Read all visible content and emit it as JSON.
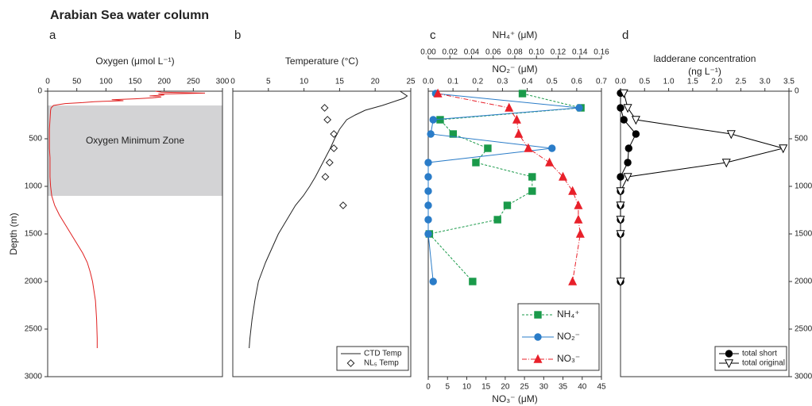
{
  "title": "Arabian Sea water column",
  "chart_data": [
    {
      "panel": "a",
      "type": "line",
      "xaxis_side": "top",
      "xlabel": "Oxygen (μmol L⁻¹)",
      "xlim": [
        0,
        300
      ],
      "xticks": [
        0,
        50,
        100,
        150,
        200,
        250,
        300
      ],
      "ylabel": "Depth (m)",
      "yaxis_side": "left",
      "ylim": [
        0,
        3000
      ],
      "yticks": [
        0,
        500,
        1000,
        1500,
        2000,
        2500,
        3000
      ],
      "annotation": {
        "text": "Oxygen Minimum Zone",
        "depth_range": [
          150,
          1100
        ],
        "color": "#d3d3d5"
      },
      "series": [
        {
          "color": "#e02020",
          "line": "solid",
          "marker": "none",
          "depths": [
            0,
            10,
            20,
            30,
            40,
            50,
            60,
            70,
            80,
            90,
            100,
            110,
            120,
            130,
            140,
            150,
            175,
            200,
            300,
            400,
            500,
            600,
            700,
            800,
            900,
            1000,
            1100,
            1200,
            1300,
            1400,
            1500,
            1600,
            1700,
            1800,
            1900,
            2000,
            2200,
            2400,
            2600,
            2700
          ],
          "values": [
            185,
            195,
            270,
            190,
            200,
            175,
            195,
            180,
            150,
            110,
            130,
            80,
            60,
            30,
            20,
            10,
            6,
            5,
            4,
            3,
            3,
            3,
            4,
            4,
            4,
            5,
            7,
            12,
            20,
            30,
            40,
            50,
            60,
            68,
            73,
            77,
            82,
            84,
            85,
            85
          ]
        }
      ]
    },
    {
      "panel": "b",
      "type": "line",
      "xaxis_side": "top",
      "xlabel": "Temperature (°C)",
      "xlim": [
        0,
        25
      ],
      "xticks": [
        0,
        5,
        10,
        15,
        20,
        25
      ],
      "ylim": [
        0,
        3000
      ],
      "legend": "lower right",
      "series": [
        {
          "name": "CTD Temp",
          "color": "#222222",
          "line": "solid",
          "marker": "none",
          "depths": [
            0,
            50,
            75,
            100,
            150,
            200,
            250,
            300,
            400,
            500,
            600,
            700,
            800,
            900,
            1000,
            1100,
            1200,
            1300,
            1400,
            1500,
            1600,
            1700,
            1800,
            1900,
            2000,
            2200,
            2400,
            2600,
            2700
          ],
          "values": [
            23.5,
            24.5,
            24,
            23,
            21,
            18.6,
            17.2,
            16,
            15,
            14.3,
            13.7,
            13,
            12.3,
            11.6,
            10.8,
            9.9,
            8.8,
            8,
            7.2,
            6.4,
            5.8,
            5.2,
            4.6,
            4.1,
            3.6,
            3.1,
            2.7,
            2.4,
            2.3
          ]
        },
        {
          "name": "NL₅ Temp",
          "color": "#222222",
          "line": "none",
          "marker": "diamond",
          "fill": "#ffffff",
          "depths": [
            175,
            300,
            450,
            600,
            750,
            900,
            1200
          ],
          "values": [
            12.9,
            13.3,
            14.2,
            14.2,
            13.6,
            13.0,
            15.5
          ]
        }
      ]
    },
    {
      "panel": "c",
      "type": "line",
      "xaxis_side": "bottom",
      "xlabel": "NO₃⁻ (μM)",
      "xlim": [
        0,
        45
      ],
      "xticks": [
        0,
        5,
        10,
        15,
        20,
        25,
        30,
        35,
        40,
        45
      ],
      "x2label": "NO₂⁻ (μM)",
      "x2lim": [
        0,
        0.7
      ],
      "x2ticks": [
        {
          "value": 0,
          "label": "0.0"
        },
        0.1,
        0.2,
        0.3,
        0.4,
        0.5,
        0.6,
        0.7
      ],
      "x3label": "NH₄⁺ (μM)",
      "x3lim": [
        0,
        0.16
      ],
      "x3ticks": [
        {
          "value": 0,
          "label": "0.00"
        },
        0.02,
        0.04,
        0.06,
        0.08,
        {
          "value": 0.1,
          "label": "0.10"
        },
        0.12,
        0.14,
        0.16
      ],
      "ylim": [
        0,
        3000
      ],
      "legend": "lower right",
      "series": [
        {
          "name": "NH₄⁺",
          "axis": "x3",
          "color": "#1a9a4a",
          "line": "dashed",
          "marker": "square",
          "depths": [
            25,
            175,
            300,
            450,
            600,
            750,
            900,
            1050,
            1200,
            1350,
            1500,
            2000
          ],
          "values": [
            0.087,
            0.141,
            0.011,
            0.023,
            0.055,
            0.044,
            0.096,
            0.096,
            0.073,
            0.064,
            0.001,
            0.041
          ]
        },
        {
          "name": "NO₂⁻",
          "axis": "x2",
          "color": "#2a7cc8",
          "line": "solid",
          "marker": "circle",
          "depths": [
            25,
            175,
            300,
            450,
            600,
            750,
            900,
            1050,
            1200,
            1350,
            1500,
            2000
          ],
          "values": [
            0.03,
            0.61,
            0.02,
            0.01,
            0.5,
            0,
            0,
            0,
            0,
            0,
            0,
            0.02
          ]
        },
        {
          "name": "NO₃⁻",
          "color": "#e8202a",
          "line": "dashdot",
          "marker": "triangle",
          "depths": [
            25,
            175,
            300,
            450,
            600,
            750,
            900,
            1050,
            1200,
            1350,
            1500,
            2000
          ],
          "values": [
            2.5,
            21,
            23,
            23.5,
            26,
            31.5,
            35,
            37.5,
            39,
            39,
            39.5,
            37.5
          ]
        }
      ]
    },
    {
      "panel": "d",
      "type": "line",
      "xaxis_side": "top",
      "xlabel": [
        "ladderane concentration",
        "(ng L⁻¹)"
      ],
      "xlim": [
        0,
        3.5
      ],
      "xticks": [
        {
          "value": 0,
          "label": "0.0"
        },
        0.5,
        {
          "value": 1,
          "label": "1.0"
        },
        1.5,
        {
          "value": 2,
          "label": "2.0"
        },
        2.5,
        {
          "value": 3,
          "label": "3.0"
        },
        3.5
      ],
      "yaxis_side": "right",
      "ylim": [
        0,
        3000
      ],
      "yticks": [
        0,
        500,
        1000,
        1500,
        2000,
        2500,
        3000
      ],
      "legend": "lower right",
      "series": [
        {
          "name": "total short",
          "color": "#000000",
          "line": "solid",
          "marker": "circle",
          "depths": [
            20,
            175,
            300,
            450,
            600,
            750,
            900,
            1050,
            1200,
            1350,
            1500,
            2000
          ],
          "values": [
            0,
            0,
            0.07,
            0.32,
            0.17,
            0.15,
            0,
            0,
            0,
            0,
            0,
            0
          ]
        },
        {
          "name": "total original",
          "color": "#000000",
          "line": "solid",
          "marker": "triangle-down",
          "fill": "#ffffff",
          "depths": [
            20,
            175,
            300,
            450,
            600,
            750,
            900,
            1050,
            1200,
            1350,
            1500,
            2000
          ],
          "values": [
            0.07,
            0.15,
            0.32,
            2.3,
            3.38,
            2.2,
            0.15,
            0,
            0,
            0,
            0,
            0
          ]
        }
      ]
    }
  ]
}
